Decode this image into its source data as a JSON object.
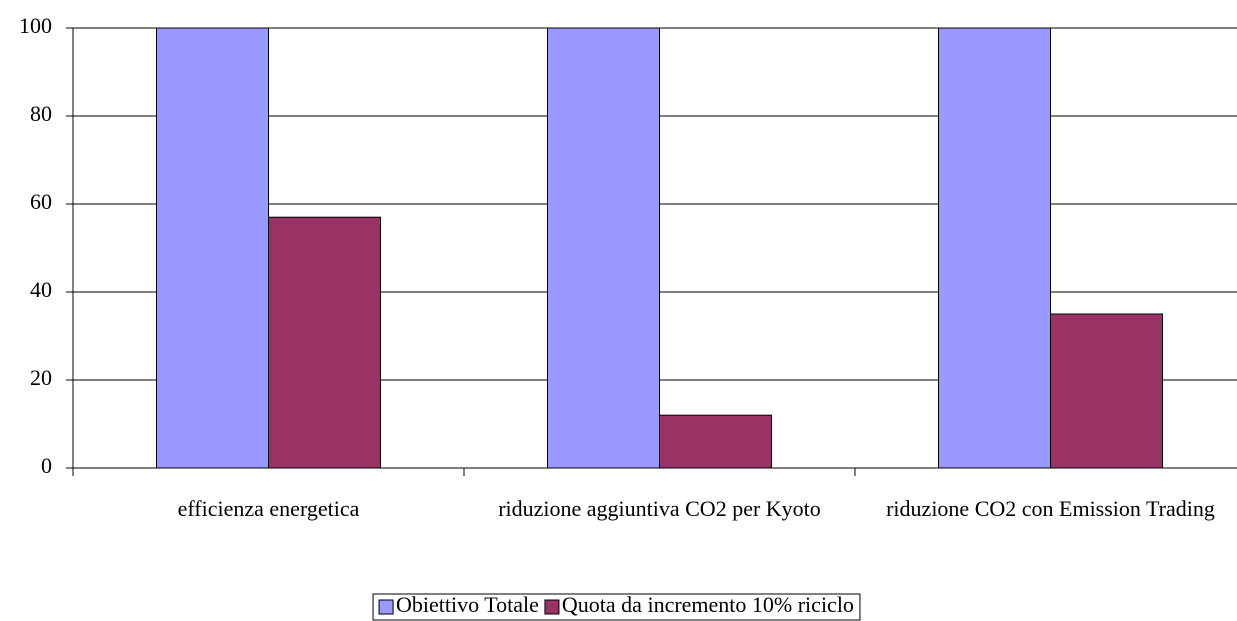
{
  "chart_data": {
    "type": "bar",
    "categories": [
      "efficienza energetica",
      "riduzione aggiuntiva CO2 per Kyoto",
      "riduzione CO2 con Emission Trading"
    ],
    "series": [
      {
        "name": "Obiettivo Totale",
        "color": "#9999ff",
        "values": [
          100,
          100,
          100
        ]
      },
      {
        "name": "Quota da incremento 10% riciclo",
        "color": "#993366",
        "values": [
          57,
          12,
          35
        ]
      }
    ],
    "ylim": [
      0,
      100
    ],
    "yticks": [
      0,
      20,
      40,
      60,
      80,
      100
    ],
    "grid": true,
    "legend": "bottom"
  }
}
